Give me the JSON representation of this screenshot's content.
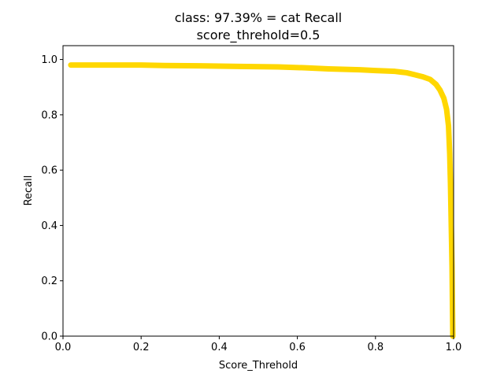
{
  "chart_data": {
    "type": "line",
    "title_line1": "class: 97.39% = cat Recall",
    "title_line2": "score_threhold=0.5",
    "xlabel": "Score_Threhold",
    "ylabel": "Recall",
    "xlim": [
      0.0,
      1.0
    ],
    "ylim": [
      0.0,
      1.05
    ],
    "xticks": [
      0.0,
      0.2,
      0.4,
      0.6,
      0.8,
      1.0
    ],
    "yticks": [
      0.0,
      0.2,
      0.4,
      0.6,
      0.8,
      1.0
    ],
    "xtick_labels": [
      "0.0",
      "0.2",
      "0.4",
      "0.6",
      "0.8",
      "1.0"
    ],
    "ytick_labels": [
      "0.0",
      "0.2",
      "0.4",
      "0.6",
      "0.8",
      "1.0"
    ],
    "grid": false,
    "line_color": "#ffd700",
    "series": [
      {
        "x": [
          0.02,
          0.1,
          0.2,
          0.26,
          0.35,
          0.45,
          0.55,
          0.62,
          0.68,
          0.76,
          0.8,
          0.85,
          0.88,
          0.9,
          0.92,
          0.94,
          0.955,
          0.965,
          0.975,
          0.982,
          0.987,
          0.99,
          0.992,
          0.994,
          0.996,
          0.997,
          0.998
        ],
        "y": [
          0.98,
          0.98,
          0.98,
          0.978,
          0.977,
          0.975,
          0.973,
          0.97,
          0.966,
          0.963,
          0.96,
          0.957,
          0.952,
          0.945,
          0.938,
          0.928,
          0.91,
          0.89,
          0.86,
          0.82,
          0.76,
          0.66,
          0.55,
          0.4,
          0.25,
          0.12,
          0.0
        ]
      }
    ]
  }
}
